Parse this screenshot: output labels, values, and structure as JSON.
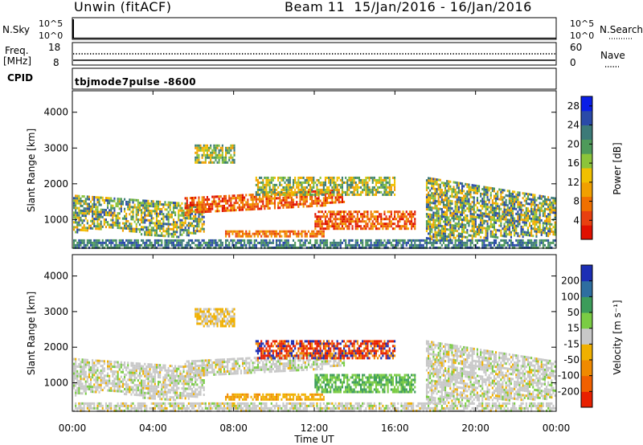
{
  "header": {
    "title_left": "Unwin (fitACF)",
    "title_right": "Beam 11  15/Jan/2016 - 16/Jan/2016"
  },
  "sky_panel": {
    "left_label": "N.Sky",
    "right_label": "N.Search",
    "ticks": [
      "10^5",
      "10^0"
    ]
  },
  "freq_panel": {
    "left_label_line1": "Freq.",
    "left_label_line2": "[MHz]",
    "left_ticks": [
      "18",
      "8"
    ],
    "right_ticks": [
      "60",
      "0"
    ],
    "right_label": "Nave"
  },
  "cpid_panel": {
    "label": "CPID",
    "mode": "tbjmode7pulse -8600"
  },
  "chart_data": [
    {
      "type": "heatmap",
      "name": "power",
      "ylabel": "Slant Range [km]",
      "yticks": [
        1000,
        2000,
        3000,
        4000
      ],
      "ylim": [
        200,
        4600
      ],
      "colorbar_label": "Power [dB]",
      "colorbar_ticks": [
        4,
        8,
        12,
        16,
        20,
        24,
        28
      ],
      "colorbar_colors": [
        "#0a1ee6",
        "#2a4aa8",
        "#3c7a78",
        "#4e9a5a",
        "#8cc43a",
        "#f0c000",
        "#f0a000",
        "#f07000",
        "#e84010",
        "#e01000"
      ]
    },
    {
      "type": "heatmap",
      "name": "velocity",
      "ylabel": "Slant Range [km]",
      "yticks": [
        1000,
        2000,
        3000,
        4000
      ],
      "ylim": [
        200,
        4600
      ],
      "colorbar_label": "Velocity [m s⁻¹]",
      "colorbar_ticks": [
        200,
        100,
        50,
        15,
        -15,
        -50,
        -100,
        -200
      ],
      "colorbar_colors": [
        "#1c2eb4",
        "#2e6ea0",
        "#3c9c5a",
        "#7acc44",
        "#c8c8c8",
        "#f0b000",
        "#f08a00",
        "#f06000",
        "#e82000"
      ]
    }
  ],
  "xaxis": {
    "label": "Time UT",
    "ticks": [
      "00:00",
      "04:00",
      "08:00",
      "12:00",
      "16:00",
      "20:00",
      "00:00"
    ]
  }
}
